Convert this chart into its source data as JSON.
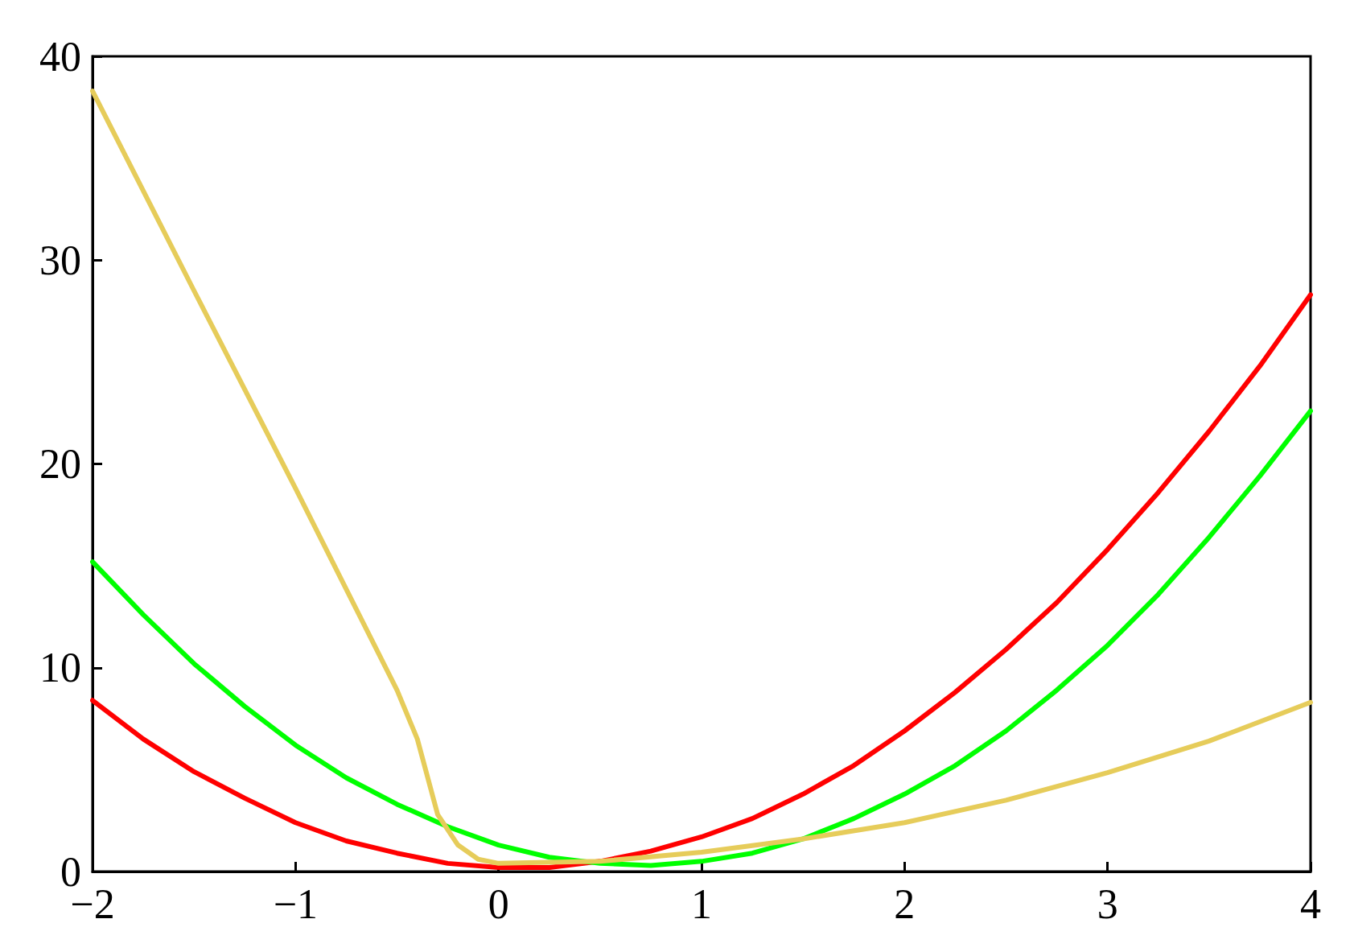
{
  "chart_data": {
    "type": "line",
    "x": [
      -2,
      -1.75,
      -1.5,
      -1.25,
      -1,
      -0.75,
      -0.5,
      -0.25,
      0,
      0.25,
      0.5,
      0.75,
      1,
      1.25,
      1.5,
      1.75,
      2,
      2.25,
      2.5,
      2.75,
      3,
      3.25,
      3.5,
      3.75,
      4
    ],
    "series": [
      {
        "color": "#ff0000",
        "values": [
          8.4,
          6.5,
          4.9,
          3.6,
          2.4,
          1.5,
          0.9,
          0.4,
          0.2,
          0.2,
          0.5,
          1.0,
          1.7,
          2.6,
          3.8,
          5.2,
          6.9,
          8.8,
          10.9,
          13.2,
          15.8,
          18.6,
          21.6,
          24.8,
          28.3
        ]
      },
      {
        "color": "#00ff00",
        "values": [
          15.2,
          12.6,
          10.2,
          8.1,
          6.2,
          4.6,
          3.3,
          2.2,
          1.3,
          0.7,
          0.4,
          0.3,
          0.5,
          0.9,
          1.6,
          2.6,
          3.8,
          5.2,
          6.9,
          8.9,
          11.1,
          13.6,
          16.4,
          19.4,
          22.6
        ]
      },
      {
        "color": "#e6cc5a",
        "x": [
          -2,
          -1.5,
          -1,
          -0.5,
          -0.4,
          -0.3,
          -0.2,
          -0.1,
          0,
          0.5,
          1,
          1.5,
          2,
          2.5,
          3,
          3.5,
          4
        ],
        "values": [
          38.3,
          28.5,
          18.8,
          8.9,
          6.5,
          2.8,
          1.3,
          0.6,
          0.4,
          0.5,
          0.95,
          1.6,
          2.4,
          3.5,
          4.85,
          6.4,
          8.3
        ]
      }
    ],
    "xlim": [
      -2,
      4
    ],
    "xticks": [
      {
        "value": -2,
        "label": "−2"
      },
      {
        "value": -1,
        "label": "−1"
      },
      0,
      1,
      2,
      3,
      4
    ],
    "ylim": [
      0,
      40
    ],
    "yticks": [
      0,
      10,
      20,
      30,
      40
    ],
    "marker": "none",
    "line_style": "solid"
  }
}
